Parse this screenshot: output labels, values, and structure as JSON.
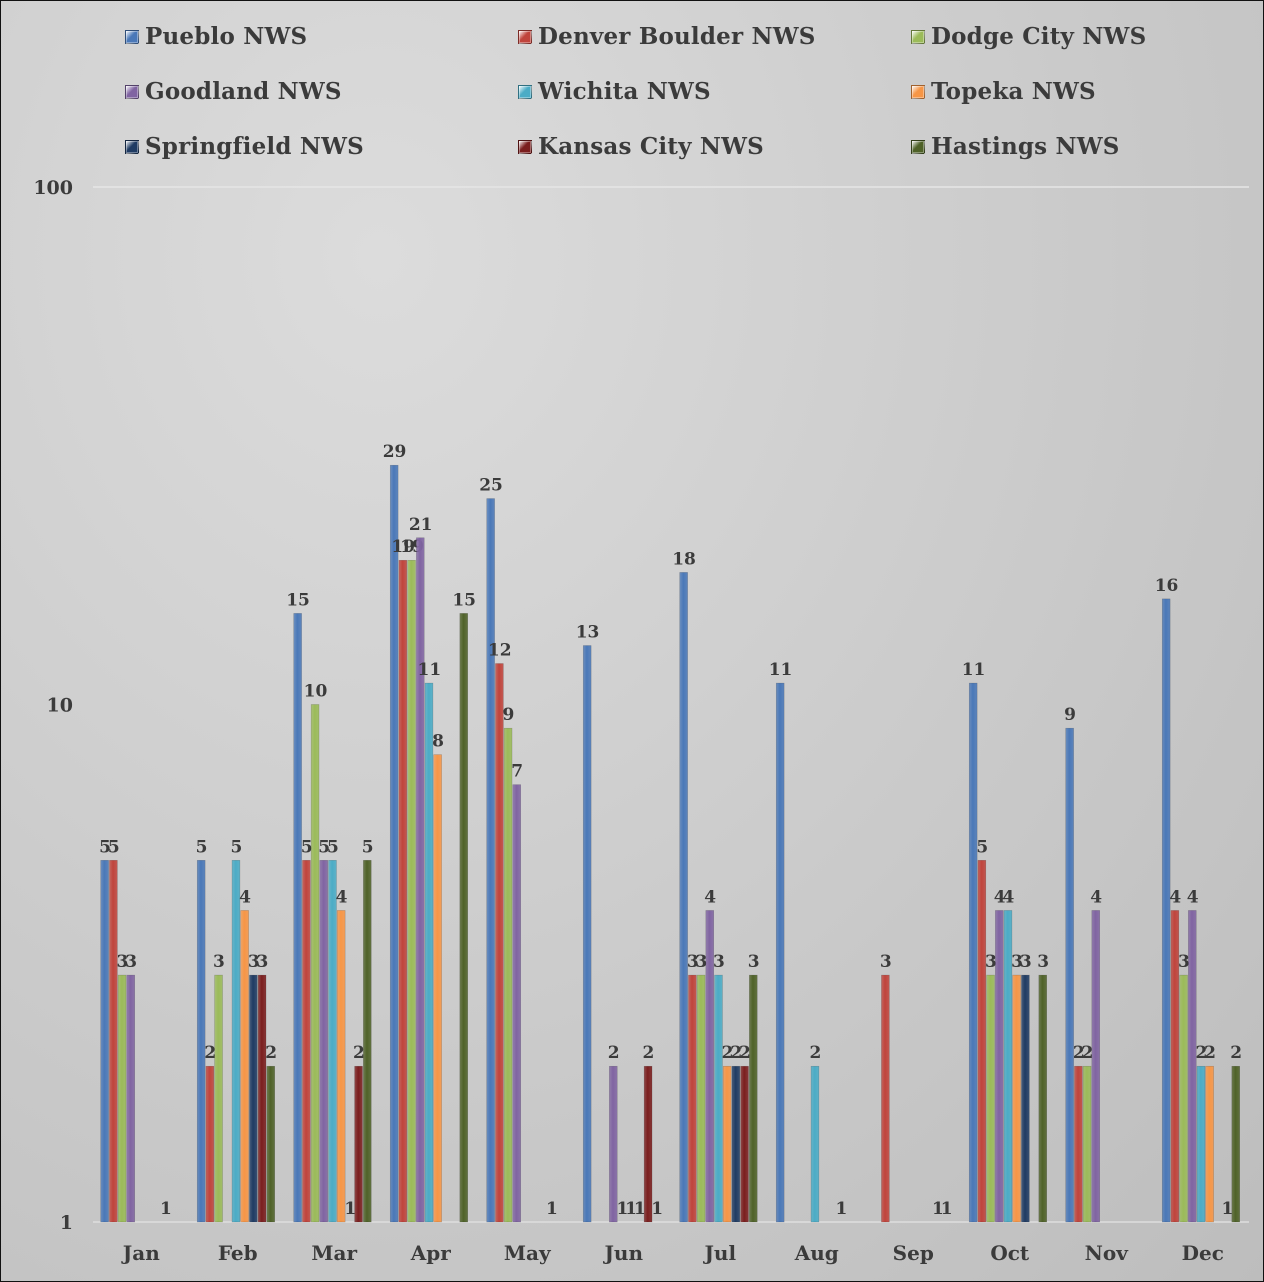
{
  "chart_data": {
    "type": "bar",
    "title": "",
    "xlabel": "",
    "ylabel": "",
    "y_scale": "log",
    "ylim": [
      1,
      100
    ],
    "y_ticks": [
      "1",
      "10",
      "100"
    ],
    "gridlines": "horizontal at 100",
    "legend_position": "top",
    "categories": [
      "Jan",
      "Feb",
      "Mar",
      "Apr",
      "May",
      "Jun",
      "Jul",
      "Aug",
      "Sep",
      "Oct",
      "Nov",
      "Dec"
    ],
    "series": [
      {
        "name": "Pueblo NWS",
        "color": "#4a78b8",
        "values": [
          5,
          5,
          15,
          29,
          25,
          13,
          18,
          11,
          null,
          11,
          9,
          16
        ]
      },
      {
        "name": "Denver Boulder NWS",
        "color": "#c0443c",
        "values": [
          5,
          2,
          5,
          19,
          12,
          null,
          3,
          null,
          3,
          5,
          2,
          4
        ]
      },
      {
        "name": "Dodge City NWS",
        "color": "#9bbb59",
        "values": [
          3,
          3,
          10,
          19,
          9,
          null,
          3,
          null,
          null,
          3,
          2,
          3
        ]
      },
      {
        "name": "Goodland NWS",
        "color": "#8064a2",
        "values": [
          3,
          null,
          5,
          21,
          7,
          2,
          4,
          null,
          null,
          4,
          4,
          4
        ]
      },
      {
        "name": "Wichita NWS",
        "color": "#4bacc6",
        "values": [
          null,
          5,
          5,
          11,
          null,
          1,
          3,
          2,
          null,
          4,
          null,
          2
        ]
      },
      {
        "name": "Topeka NWS",
        "color": "#f79646",
        "values": [
          null,
          4,
          4,
          8,
          null,
          1,
          2,
          null,
          null,
          3,
          null,
          2
        ]
      },
      {
        "name": "Springfield NWS",
        "color": "#1f3b63",
        "values": [
          null,
          3,
          1,
          null,
          null,
          1,
          2,
          null,
          null,
          3,
          null,
          null
        ]
      },
      {
        "name": "Kansas City NWS",
        "color": "#7b1e1e",
        "values": [
          1,
          3,
          2,
          null,
          1,
          2,
          2,
          1,
          1,
          null,
          null,
          1
        ]
      },
      {
        "name": "Hastings NWS",
        "color": "#4f6228",
        "values": [
          null,
          2,
          5,
          15,
          null,
          1,
          3,
          null,
          1,
          3,
          null,
          2
        ]
      }
    ]
  }
}
